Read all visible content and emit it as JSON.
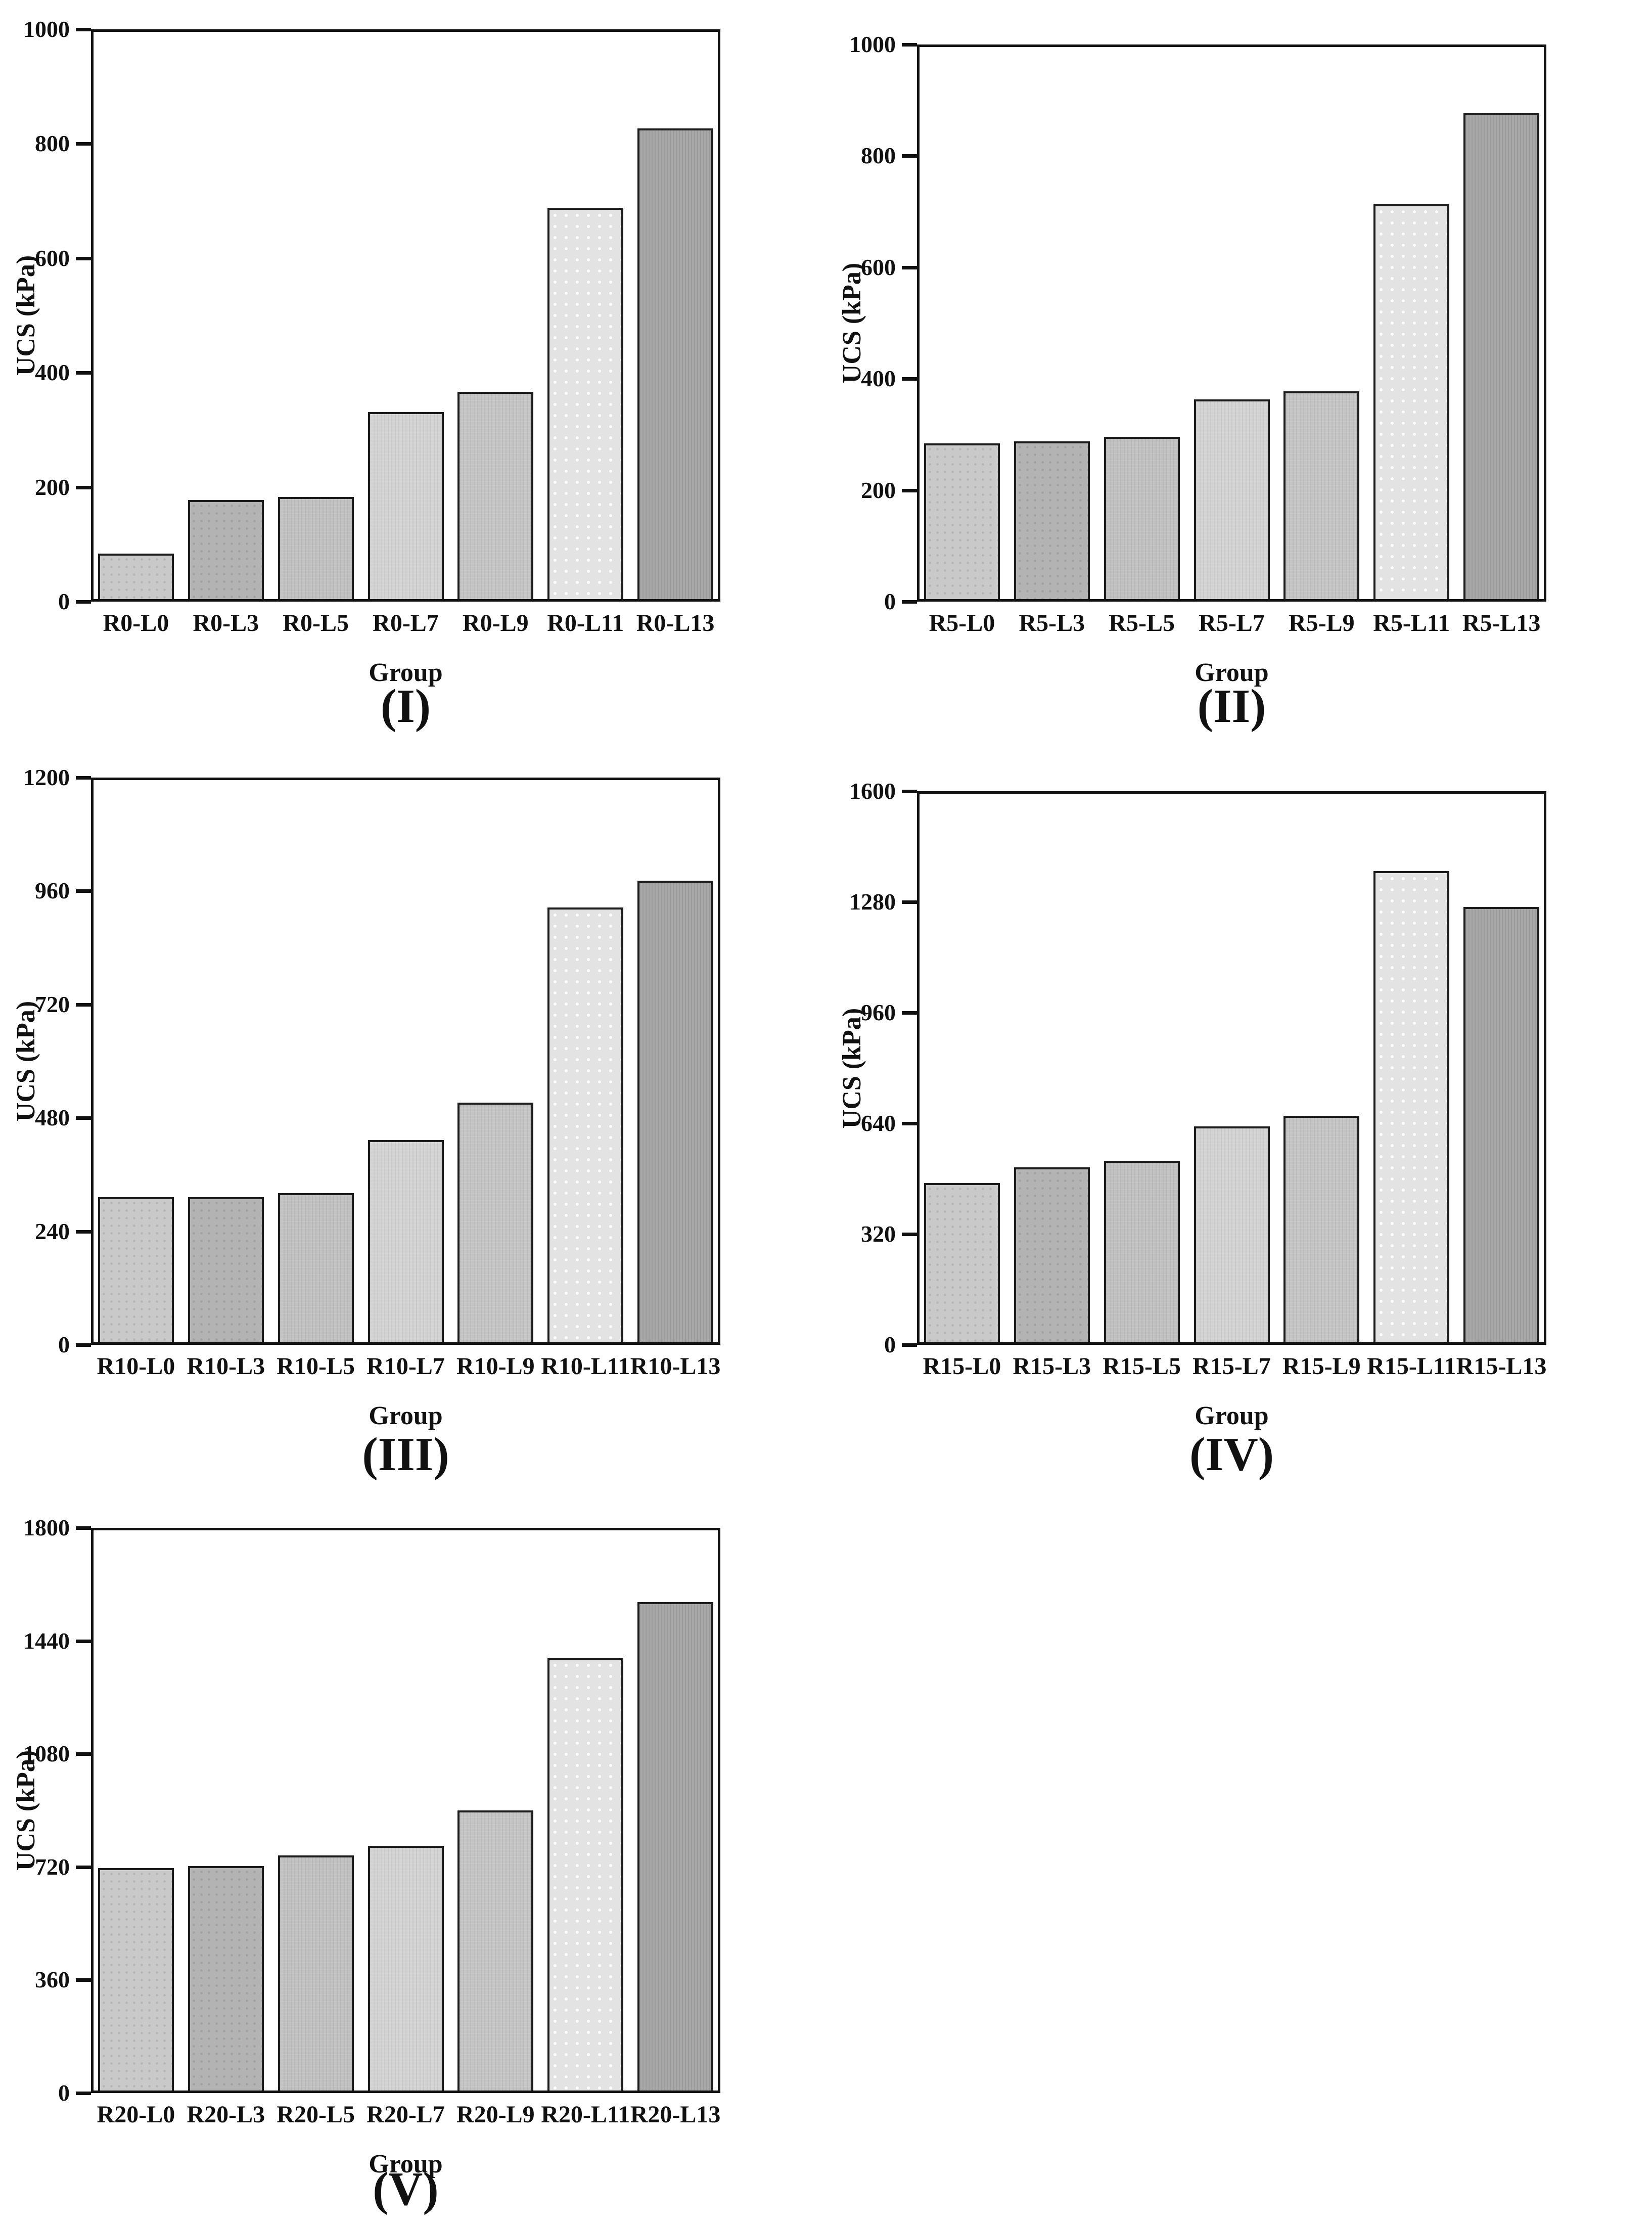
{
  "figure": {
    "background": "#ffffff",
    "axis_color": "#111111",
    "bar_outline": "#1c1c1c",
    "bar_styles": [
      {
        "color": "#c9c9c9",
        "pattern": "dots-dark"
      },
      {
        "color": "#b3b3b3",
        "pattern": "dots-dark"
      },
      {
        "color": "#c1c1c1",
        "pattern": "weave"
      },
      {
        "color": "#d3d3d3",
        "pattern": "weave"
      },
      {
        "color": "#c5c5c5",
        "pattern": "weave"
      },
      {
        "color": "#e3e3e3",
        "pattern": "dots-white"
      },
      {
        "color": "#a8a8a8",
        "pattern": "lines"
      }
    ]
  },
  "chart_data": [
    {
      "type": "bar",
      "panel_label": "(I)",
      "ylabel": "UCS (kPa)",
      "xlabel": "Group",
      "ylim": [
        0,
        1000
      ],
      "yticks": [
        0,
        200,
        400,
        600,
        800,
        1000
      ],
      "categories": [
        "R0-L0",
        "R0-L3",
        "R0-L5",
        "R0-L7",
        "R0-L9",
        "R0-L11",
        "R0-L13"
      ],
      "values": [
        80,
        175,
        180,
        330,
        365,
        690,
        830
      ],
      "grid": false,
      "legend_position": "none"
    },
    {
      "type": "bar",
      "panel_label": "(II)",
      "ylabel": "UCS (kPa)",
      "xlabel": "Group",
      "ylim": [
        0,
        1000
      ],
      "yticks": [
        0,
        200,
        400,
        600,
        800,
        1000
      ],
      "categories": [
        "R5-L0",
        "R5-L3",
        "R5-L5",
        "R5-L7",
        "R5-L9",
        "R5-L11",
        "R5-L13"
      ],
      "values": [
        282,
        286,
        294,
        362,
        376,
        715,
        880
      ],
      "grid": false,
      "legend_position": "none"
    },
    {
      "type": "bar",
      "panel_label": "(III)",
      "ylabel": "UCS (kPa)",
      "xlabel": "Group",
      "ylim": [
        0,
        1200
      ],
      "yticks": [
        0,
        240,
        480,
        720,
        960,
        1200
      ],
      "categories": [
        "R10-L0",
        "R10-L3",
        "R10-L5",
        "R10-L7",
        "R10-L9",
        "R10-L11",
        "R10-L13"
      ],
      "values": [
        310,
        310,
        318,
        432,
        512,
        928,
        985
      ],
      "grid": false,
      "legend_position": "none"
    },
    {
      "type": "bar",
      "panel_label": "(IV)",
      "ylabel": "UCS (kPa)",
      "xlabel": "Group",
      "ylim": [
        0,
        1600
      ],
      "yticks": [
        0,
        320,
        640,
        960,
        1280,
        1600
      ],
      "categories": [
        "R15-L0",
        "R15-L3",
        "R15-L5",
        "R15-L7",
        "R15-L9",
        "R15-L11",
        "R15-L13"
      ],
      "values": [
        465,
        510,
        530,
        630,
        660,
        1375,
        1270
      ],
      "grid": false,
      "legend_position": "none"
    },
    {
      "type": "bar",
      "panel_label": "(V)",
      "ylabel": "UCS (kPa)",
      "xlabel": "Group",
      "ylim": [
        0,
        1800
      ],
      "yticks": [
        0,
        360,
        720,
        1080,
        1440,
        1800
      ],
      "categories": [
        "R20-L0",
        "R20-L3",
        "R20-L5",
        "R20-L7",
        "R20-L9",
        "R20-L11",
        "R20-L13"
      ],
      "values": [
        715,
        722,
        756,
        786,
        900,
        1390,
        1570
      ],
      "grid": false,
      "legend_position": "none"
    }
  ]
}
